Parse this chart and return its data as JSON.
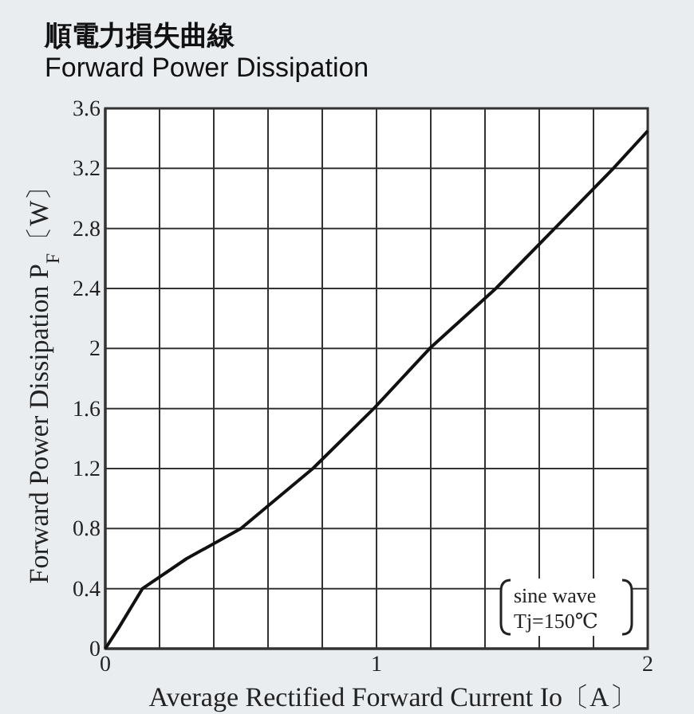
{
  "chart_data": {
    "type": "line",
    "title": "順電力損失曲線",
    "subtitle": "Forward Power Dissipation",
    "xlabel": "Average Rectified Forward Current Io〔A〕",
    "ylabel": "Forward Power Dissipation P$_{F}$〔W〕",
    "annotations": [
      "sine wave",
      "Tj=150℃"
    ],
    "x": [
      0,
      0.05,
      0.137,
      0.3,
      0.5,
      0.765,
      0.99,
      1.196,
      1.44,
      1.657,
      1.873,
      2
    ],
    "series": [
      {
        "color": "#111111",
        "values": [
          0,
          0.14,
          0.4,
          0.6,
          0.8,
          1.2,
          1.6,
          2.0,
          2.4,
          2.8,
          3.2,
          3.45
        ]
      }
    ],
    "xlim": [
      0,
      2
    ],
    "xticks": [
      0,
      {
        "value": 0.2,
        "label": null
      },
      {
        "value": 0.4,
        "label": null
      },
      {
        "value": 0.6,
        "label": null
      },
      {
        "value": 0.8,
        "label": null
      },
      1,
      {
        "value": 1.2,
        "label": null
      },
      {
        "value": 1.4,
        "label": null
      },
      {
        "value": 1.6,
        "label": null
      },
      {
        "value": 1.8,
        "label": null
      },
      2
    ],
    "ylim": [
      0,
      3.6
    ],
    "yticks": [
      0,
      0.4,
      0.8,
      1.2,
      1.6,
      2,
      2.4,
      2.8,
      3.2,
      3.6
    ],
    "grid": true,
    "marker": "none",
    "line_style": "solid"
  }
}
